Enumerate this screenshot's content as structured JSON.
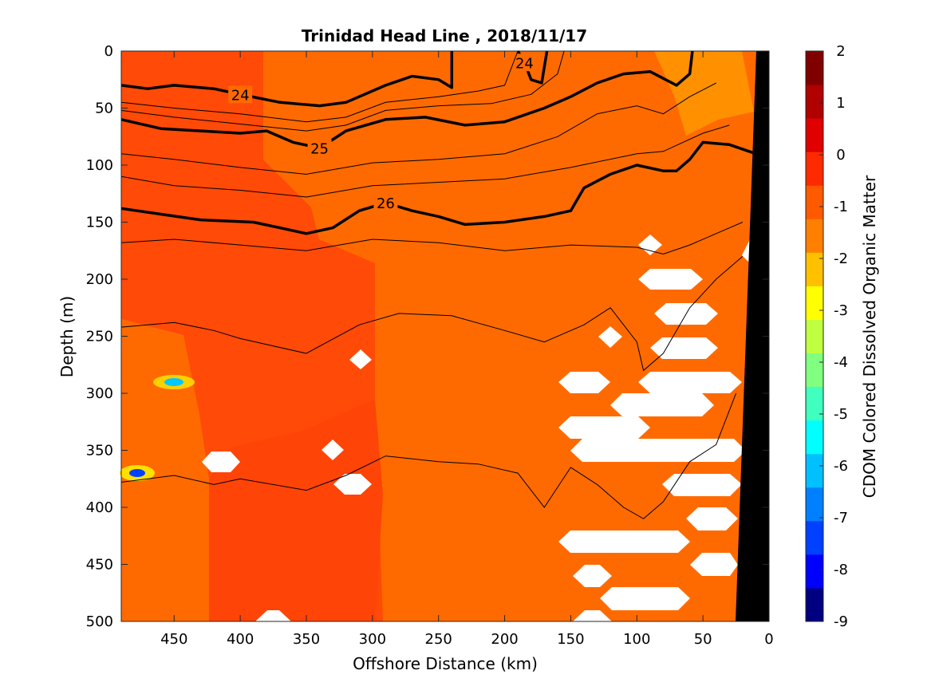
{
  "chart_data": {
    "type": "heatmap",
    "title": "Trinidad Head Line , 2018/11/17",
    "xlabel": "Offshore Distance (km)",
    "ylabel": "Depth (m)",
    "xlim": [
      490,
      0
    ],
    "ylim": [
      500,
      0
    ],
    "x_ticks": [
      "450",
      "400",
      "350",
      "300",
      "250",
      "200",
      "150",
      "100",
      "50",
      "0"
    ],
    "x_tick_values": [
      450,
      400,
      350,
      300,
      250,
      200,
      150,
      100,
      50,
      0
    ],
    "y_ticks": [
      "0",
      "50",
      "100",
      "150",
      "200",
      "250",
      "300",
      "350",
      "400",
      "450",
      "500"
    ],
    "y_tick_values": [
      0,
      50,
      100,
      150,
      200,
      250,
      300,
      350,
      400,
      450,
      500
    ],
    "colorbar": {
      "label": "CDOM Colored Dissolved Organic Matter",
      "ticks": [
        "2",
        "1",
        "0",
        "-1",
        "-2",
        "-3",
        "-4",
        "-5",
        "-6",
        "-7",
        "-8",
        "-9"
      ],
      "range": [
        -9,
        2
      ],
      "colors": [
        "#000080",
        "#0000ff",
        "#0040ff",
        "#0080ff",
        "#00c0ff",
        "#00ffff",
        "#40ffbf",
        "#80ff80",
        "#bfff40",
        "#ffff00",
        "#ffc000",
        "#ff8000",
        "#ff5a00",
        "#ff2a00",
        "#e00000",
        "#b00000",
        "#800000"
      ]
    },
    "background_value_color": "#ff6a00",
    "grid": false,
    "contours": [
      {
        "label": "24",
        "depths_m": [
          [
            490,
            30
          ],
          [
            470,
            33
          ],
          [
            450,
            30
          ],
          [
            420,
            33
          ],
          [
            400,
            38
          ],
          [
            370,
            45
          ],
          [
            340,
            48
          ],
          [
            320,
            45
          ],
          [
            290,
            30
          ],
          [
            270,
            22
          ],
          [
            250,
            25
          ],
          [
            240,
            32
          ],
          [
            240,
            0
          ]
        ]
      },
      {
        "label": "24",
        "depths_m": [
          [
            190,
            0
          ],
          [
            185,
            10
          ],
          [
            180,
            25
          ],
          [
            172,
            28
          ],
          [
            168,
            0
          ]
        ]
      },
      {
        "label": "25",
        "depths_m": [
          [
            490,
            60
          ],
          [
            460,
            68
          ],
          [
            430,
            70
          ],
          [
            400,
            72
          ],
          [
            380,
            70
          ],
          [
            360,
            80
          ],
          [
            340,
            85
          ],
          [
            320,
            70
          ],
          [
            290,
            60
          ],
          [
            260,
            58
          ],
          [
            230,
            65
          ],
          [
            200,
            62
          ],
          [
            170,
            50
          ],
          [
            150,
            40
          ],
          [
            130,
            28
          ],
          [
            110,
            20
          ],
          [
            90,
            18
          ],
          [
            70,
            30
          ],
          [
            60,
            20
          ],
          [
            58,
            0
          ]
        ]
      },
      {
        "label": "26",
        "depths_m": [
          [
            490,
            138
          ],
          [
            460,
            143
          ],
          [
            430,
            148
          ],
          [
            390,
            150
          ],
          [
            370,
            155
          ],
          [
            350,
            160
          ],
          [
            330,
            155
          ],
          [
            310,
            140
          ],
          [
            290,
            133
          ],
          [
            270,
            140
          ],
          [
            250,
            145
          ],
          [
            230,
            152
          ],
          [
            200,
            150
          ],
          [
            170,
            145
          ],
          [
            150,
            140
          ],
          [
            140,
            120
          ],
          [
            120,
            108
          ],
          [
            100,
            100
          ],
          [
            80,
            105
          ],
          [
            70,
            105
          ],
          [
            60,
            95
          ],
          [
            50,
            80
          ],
          [
            30,
            82
          ],
          [
            10,
            90
          ]
        ]
      }
    ]
  }
}
